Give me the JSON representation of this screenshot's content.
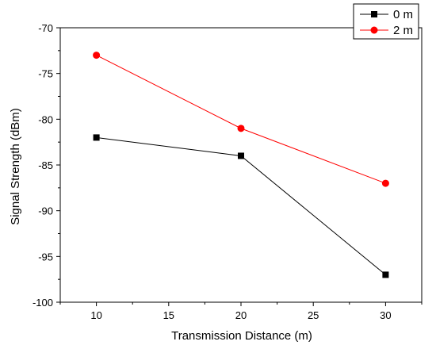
{
  "chart_data": {
    "type": "line",
    "title": "",
    "xlabel": "Transmission Distance (m)",
    "ylabel": "Signal Strength (dBm)",
    "xlim": [
      7.5,
      32.5
    ],
    "ylim": [
      -100,
      -70
    ],
    "x_ticks": [
      "10",
      "15",
      "20",
      "25",
      "30"
    ],
    "y_ticks": [
      "-70",
      "-75",
      "-80",
      "-85",
      "-90",
      "-95",
      "-100"
    ],
    "x_tick_values": [
      10,
      15,
      20,
      25,
      30
    ],
    "y_tick_values": [
      -70,
      -75,
      -80,
      -85,
      -90,
      -95,
      -100
    ],
    "grid": false,
    "legend_position": "top-right",
    "series": [
      {
        "name": "0 m",
        "x": [
          10,
          20,
          30
        ],
        "values": [
          -82,
          -84,
          -97
        ],
        "color": "#000000",
        "marker": "square"
      },
      {
        "name": "2 m",
        "x": [
          10,
          20,
          30
        ],
        "values": [
          -73,
          -81,
          -87
        ],
        "color": "#ff0000",
        "marker": "circle"
      }
    ]
  }
}
